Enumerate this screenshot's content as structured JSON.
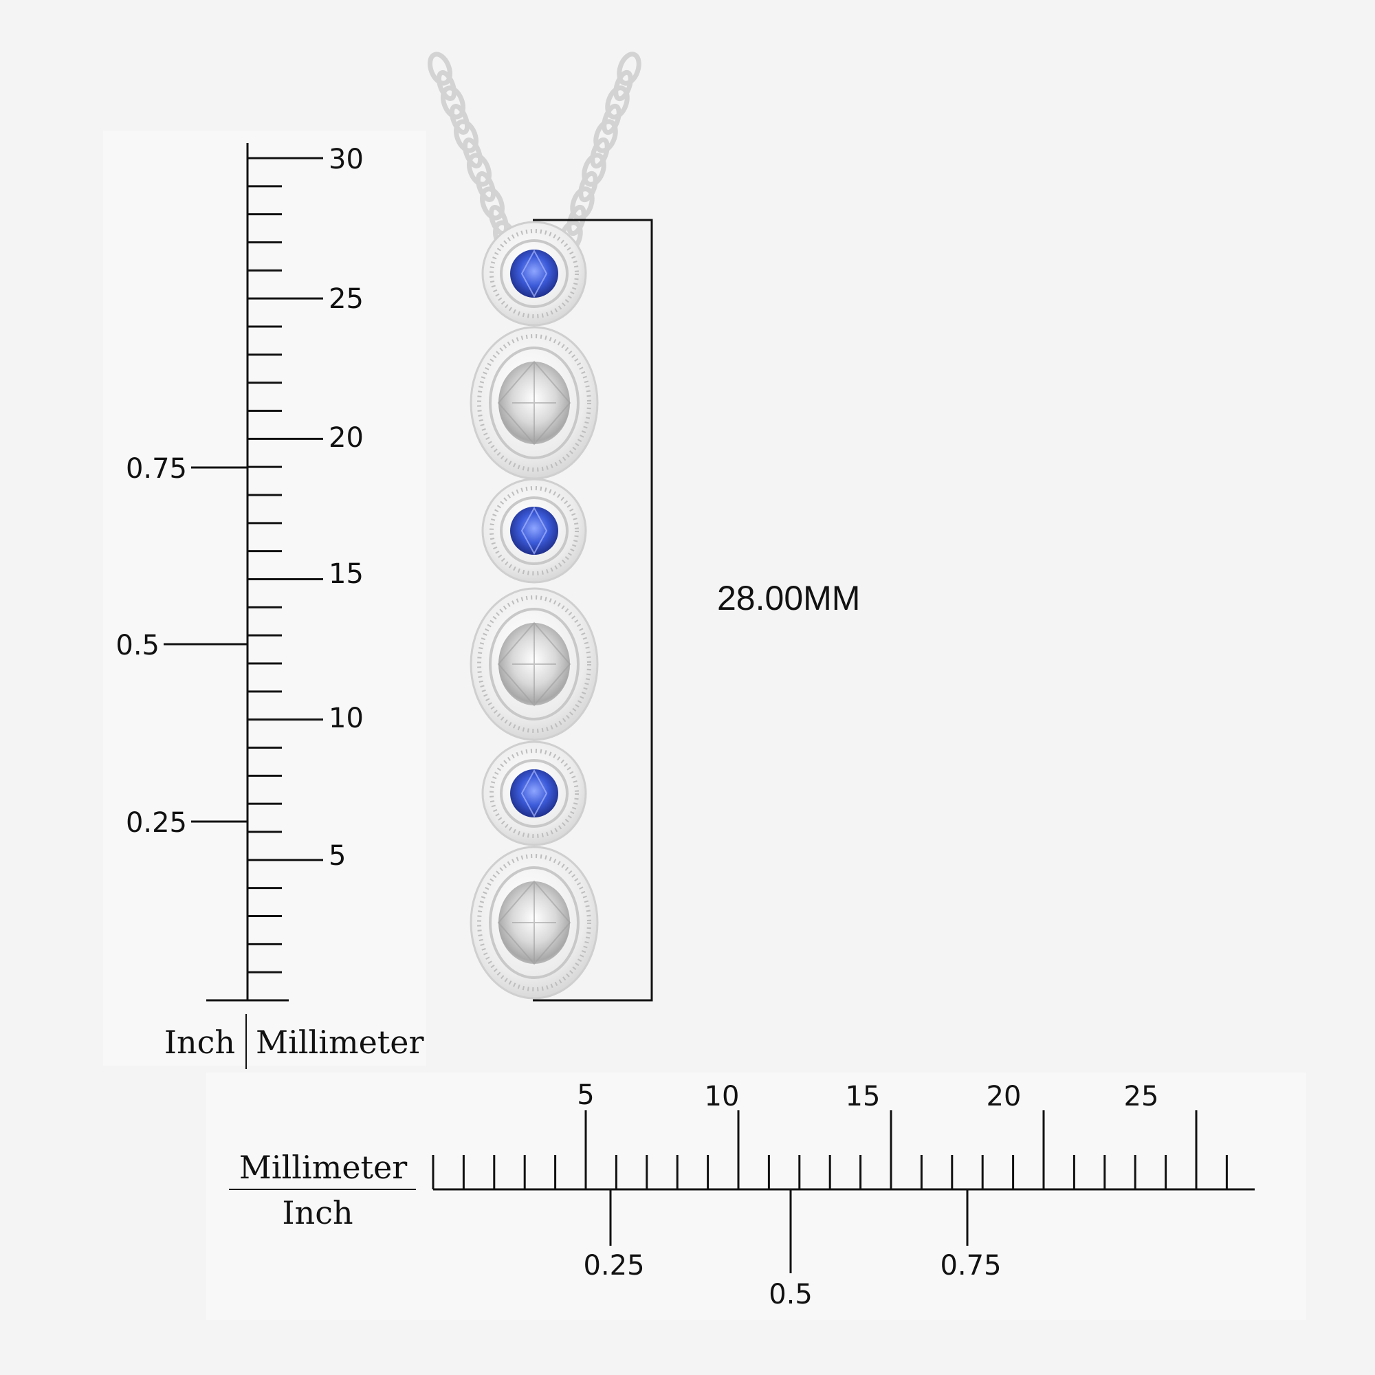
{
  "vertical_ruler": {
    "mm_labels": [
      "30",
      "25",
      "20",
      "15",
      "10",
      "5"
    ],
    "inch_labels": [
      "0.75",
      "0.5",
      "0.25"
    ],
    "caption_left": "Inch",
    "caption_right": "Millimeter"
  },
  "horizontal_ruler": {
    "mm_labels": [
      "5",
      "10",
      "15",
      "20",
      "25"
    ],
    "inch_labels": [
      "0.25",
      "0.5",
      "0.75"
    ],
    "caption_top": "Millimeter",
    "caption_bottom": "Inch"
  },
  "dimension": {
    "label": "28.00MM"
  },
  "pendant": {
    "metal_color": "#e9e9e9",
    "stones": [
      {
        "shape": "round",
        "gem": "sapphire-blue-icon",
        "color": "#3a5bd9"
      },
      {
        "shape": "oval",
        "gem": "diamond-icon",
        "color": "#d8d8d8"
      },
      {
        "shape": "round",
        "gem": "sapphire-blue-icon",
        "color": "#3a5bd9"
      },
      {
        "shape": "oval",
        "gem": "diamond-icon",
        "color": "#d8d8d8"
      },
      {
        "shape": "round",
        "gem": "sapphire-blue-icon",
        "color": "#3a5bd9"
      },
      {
        "shape": "oval",
        "gem": "diamond-icon",
        "color": "#d8d8d8"
      }
    ]
  }
}
